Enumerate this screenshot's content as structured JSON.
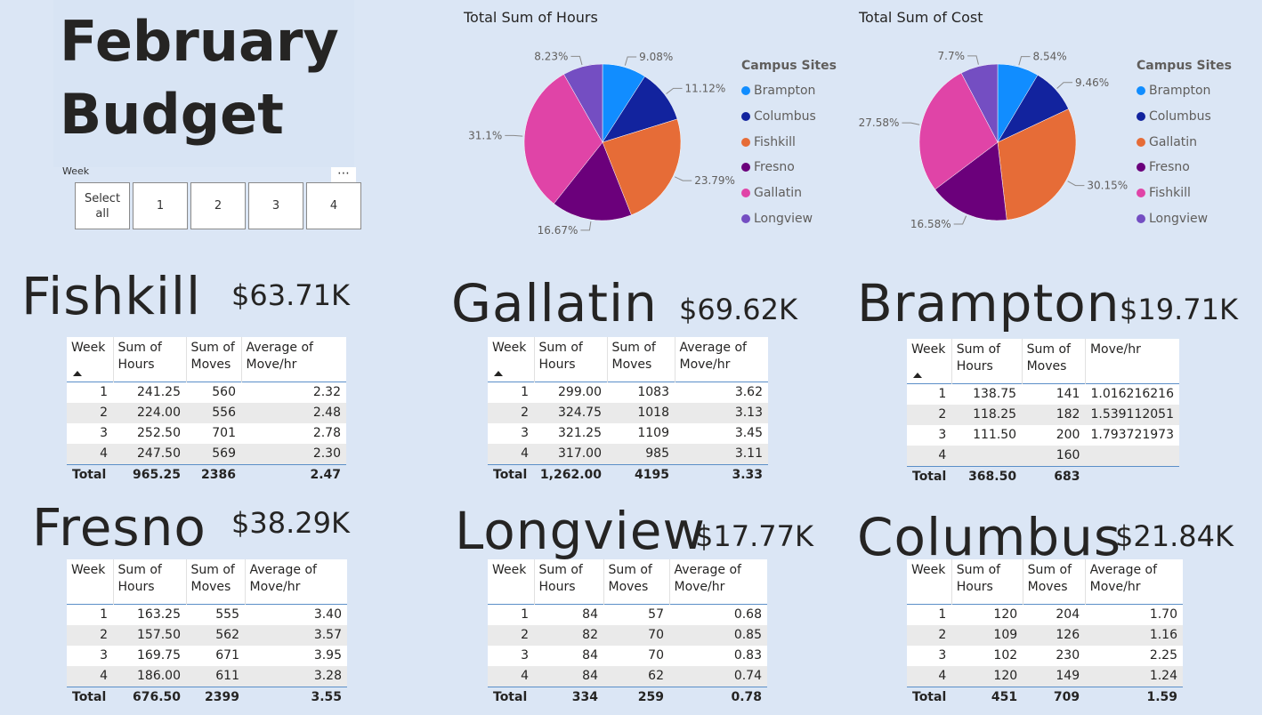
{
  "title": {
    "line1": "February",
    "line2": "Budget"
  },
  "slicer": {
    "label": "Week",
    "more_icon": "⋯",
    "options": [
      "Select all",
      "1",
      "2",
      "3",
      "4"
    ]
  },
  "charts": [
    {
      "title": "Total Sum of Hours",
      "legend_title": "Campus Sites",
      "chart_data": {
        "type": "pie",
        "slices": [
          {
            "label": "Brampton",
            "value": 9.08,
            "color": "#118dff"
          },
          {
            "label": "Columbus",
            "value": 11.12,
            "color": "#12239e"
          },
          {
            "label": "Fishkill",
            "value": 23.79,
            "color": "#e66c37"
          },
          {
            "label": "Fresno",
            "value": 16.67,
            "color": "#6b007b"
          },
          {
            "label": "Gallatin",
            "value": 31.1,
            "color": "#e044a7"
          },
          {
            "label": "Longview",
            "value": 8.23,
            "color": "#744ec2"
          }
        ],
        "data_labels": [
          "9.08%",
          "11.12%",
          "23.79%",
          "16.67%",
          "31.1%",
          "8.23%"
        ]
      }
    },
    {
      "title": "Total Sum of Cost",
      "legend_title": "Campus Sites",
      "chart_data": {
        "type": "pie",
        "slices": [
          {
            "label": "Brampton",
            "value": 8.54,
            "color": "#118dff"
          },
          {
            "label": "Columbus",
            "value": 9.46,
            "color": "#12239e"
          },
          {
            "label": "Gallatin",
            "value": 30.15,
            "color": "#e66c37"
          },
          {
            "label": "Fresno",
            "value": 16.58,
            "color": "#6b007b"
          },
          {
            "label": "Fishkill",
            "value": 27.58,
            "color": "#e044a7"
          },
          {
            "label": "Longview",
            "value": 7.7,
            "color": "#744ec2"
          }
        ],
        "data_labels": [
          "8.54%",
          "9.46%",
          "30.15%",
          "16.58%",
          "27.58%",
          "7.7%"
        ]
      }
    }
  ],
  "sites": [
    {
      "name": "Fishkill",
      "cost": "$63.71K",
      "headers": [
        "Week",
        "Sum of Hours",
        "Sum of Moves",
        "Average of Move/hr"
      ],
      "rows": [
        [
          "1",
          "241.25",
          "560",
          "2.32"
        ],
        [
          "2",
          "224.00",
          "556",
          "2.48"
        ],
        [
          "3",
          "252.50",
          "701",
          "2.78"
        ],
        [
          "4",
          "247.50",
          "569",
          "2.30"
        ]
      ],
      "total": [
        "Total",
        "965.25",
        "2386",
        "2.47"
      ]
    },
    {
      "name": "Gallatin",
      "cost": "$69.62K",
      "headers": [
        "Week",
        "Sum of Hours",
        "Sum of Moves",
        "Average of Move/hr"
      ],
      "rows": [
        [
          "1",
          "299.00",
          "1083",
          "3.62"
        ],
        [
          "2",
          "324.75",
          "1018",
          "3.13"
        ],
        [
          "3",
          "321.25",
          "1109",
          "3.45"
        ],
        [
          "4",
          "317.00",
          "985",
          "3.11"
        ]
      ],
      "total": [
        "Total",
        "1,262.00",
        "4195",
        "3.33"
      ]
    },
    {
      "name": "Brampton",
      "cost": "$19.71K",
      "headers": [
        "Week",
        "Sum of Hours",
        "Sum of Moves",
        "Move/hr"
      ],
      "rows": [
        [
          "1",
          "138.75",
          "141",
          "1.016216216"
        ],
        [
          "2",
          "118.25",
          "182",
          "1.539112051"
        ],
        [
          "3",
          "111.50",
          "200",
          "1.793721973"
        ],
        [
          "4",
          "",
          "160",
          ""
        ]
      ],
      "total": [
        "Total",
        "368.50",
        "683",
        ""
      ]
    },
    {
      "name": "Fresno",
      "cost": "$38.29K",
      "headers": [
        "Week",
        "Sum of Hours",
        "Sum of Moves",
        "Average of Move/hr"
      ],
      "rows": [
        [
          "1",
          "163.25",
          "555",
          "3.40"
        ],
        [
          "2",
          "157.50",
          "562",
          "3.57"
        ],
        [
          "3",
          "169.75",
          "671",
          "3.95"
        ],
        [
          "4",
          "186.00",
          "611",
          "3.28"
        ]
      ],
      "total": [
        "Total",
        "676.50",
        "2399",
        "3.55"
      ]
    },
    {
      "name": "Longview",
      "cost": "$17.77K",
      "headers": [
        "Week",
        "Sum of Hours",
        "Sum of Moves",
        "Average of Move/hr"
      ],
      "rows": [
        [
          "1",
          "84",
          "57",
          "0.68"
        ],
        [
          "2",
          "82",
          "70",
          "0.85"
        ],
        [
          "3",
          "84",
          "70",
          "0.83"
        ],
        [
          "4",
          "84",
          "62",
          "0.74"
        ]
      ],
      "total": [
        "Total",
        "334",
        "259",
        "0.78"
      ]
    },
    {
      "name": "Columbus",
      "cost": "$21.84K",
      "headers": [
        "Week",
        "Sum of Hours",
        "Sum of Moves",
        "Average of Move/hr"
      ],
      "rows": [
        [
          "1",
          "120",
          "204",
          "1.70"
        ],
        [
          "2",
          "109",
          "126",
          "1.16"
        ],
        [
          "3",
          "102",
          "230",
          "2.25"
        ],
        [
          "4",
          "120",
          "149",
          "1.24"
        ]
      ],
      "total": [
        "Total",
        "451",
        "709",
        "1.59"
      ]
    }
  ]
}
